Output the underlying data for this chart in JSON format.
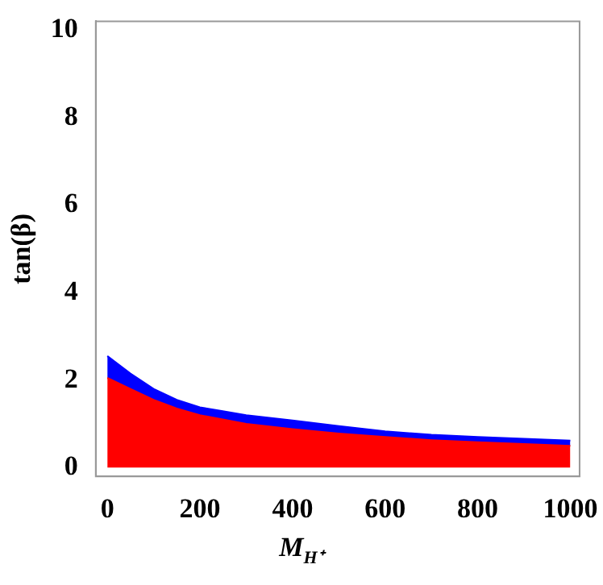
{
  "chart_data": {
    "type": "area",
    "xlabel": "M$_{H⁺}$",
    "ylabel": "tan(β)",
    "x": [
      0,
      50,
      100,
      150,
      200,
      300,
      400,
      500,
      600,
      700,
      800,
      900,
      1000
    ],
    "series": [
      {
        "color": "#ff0000",
        "values": [
          2.05,
          1.8,
          1.55,
          1.35,
          1.2,
          1.0,
          0.88,
          0.78,
          0.7,
          0.63,
          0.58,
          0.54,
          0.5
        ]
      },
      {
        "color": "#0000ff",
        "values": [
          2.55,
          2.15,
          1.8,
          1.55,
          1.38,
          1.2,
          1.08,
          0.95,
          0.83,
          0.75,
          0.7,
          0.66,
          0.62
        ]
      }
    ],
    "xlim": [
      -25,
      1020
    ],
    "ylim": [
      -0.2,
      10.2
    ],
    "xticks": [
      0,
      200,
      400,
      600,
      800,
      1000
    ],
    "yticks": [
      0,
      2,
      4,
      6,
      8,
      10
    ],
    "grid": false,
    "legend": false
  }
}
